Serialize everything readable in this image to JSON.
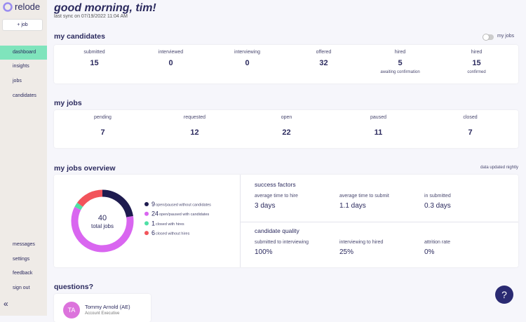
{
  "sidebar": {
    "logo": "relode",
    "new_job": "job",
    "nav": [
      "dashboard",
      "insights",
      "jobs",
      "candidates"
    ],
    "bottom_nav": [
      "messages",
      "settings",
      "feedback",
      "sign out"
    ]
  },
  "header": {
    "title": "good morning, tim!",
    "subtitle": "last sync on 07/19/2022 11:04 AM"
  },
  "candidates": {
    "title": "my candidates",
    "toggle": "my jobs",
    "stats": [
      {
        "label": "submitted",
        "value": 15
      },
      {
        "label": "interviewed",
        "value": 0
      },
      {
        "label": "interviewing",
        "value": 0
      },
      {
        "label": "offered",
        "value": 32
      },
      {
        "label": "hired",
        "value": 5,
        "note": "awaiting confirmation"
      },
      {
        "label": "hired",
        "value": 15,
        "note": "confirmed"
      }
    ]
  },
  "jobs": {
    "title": "my jobs",
    "stats": [
      {
        "label": "pending",
        "value": 7
      },
      {
        "label": "requested",
        "value": 12
      },
      {
        "label": "open",
        "value": 22
      },
      {
        "label": "paused",
        "value": 11
      },
      {
        "label": "closed",
        "value": 7
      }
    ]
  },
  "overview": {
    "title": "my jobs overview",
    "note": "data updated nightly",
    "donut": {
      "total": 40,
      "total_label": "total jobs",
      "segments": [
        {
          "value": 9,
          "label": "open/paused without candidates",
          "color": "#1e1b4f"
        },
        {
          "value": 24,
          "label": "open/paused with candidates",
          "color": "#d966f0"
        },
        {
          "value": 1,
          "label": "closed with hires",
          "color": "#4fe0a6"
        },
        {
          "value": 6,
          "label": "closed without hires",
          "color": "#f2545b"
        }
      ]
    },
    "success": {
      "title": "success factors",
      "metrics": [
        {
          "label": "average time to hire",
          "value": "3 days"
        },
        {
          "label": "average time to submit",
          "value": "1.1 days"
        },
        {
          "label": "in submitted",
          "value": "0.3 days"
        }
      ]
    },
    "quality": {
      "title": "candidate quality",
      "metrics": [
        {
          "label": "submitted to interviewing",
          "value": "100%"
        },
        {
          "label": "interviewing to hired",
          "value": "25%"
        },
        {
          "label": "attrition rate",
          "value": "0%"
        }
      ]
    }
  },
  "questions": {
    "title": "questions?",
    "contact": {
      "initials": "TA",
      "name": "Tommy Arnold (AE)",
      "role": "Account Executive"
    }
  },
  "help": "?"
}
